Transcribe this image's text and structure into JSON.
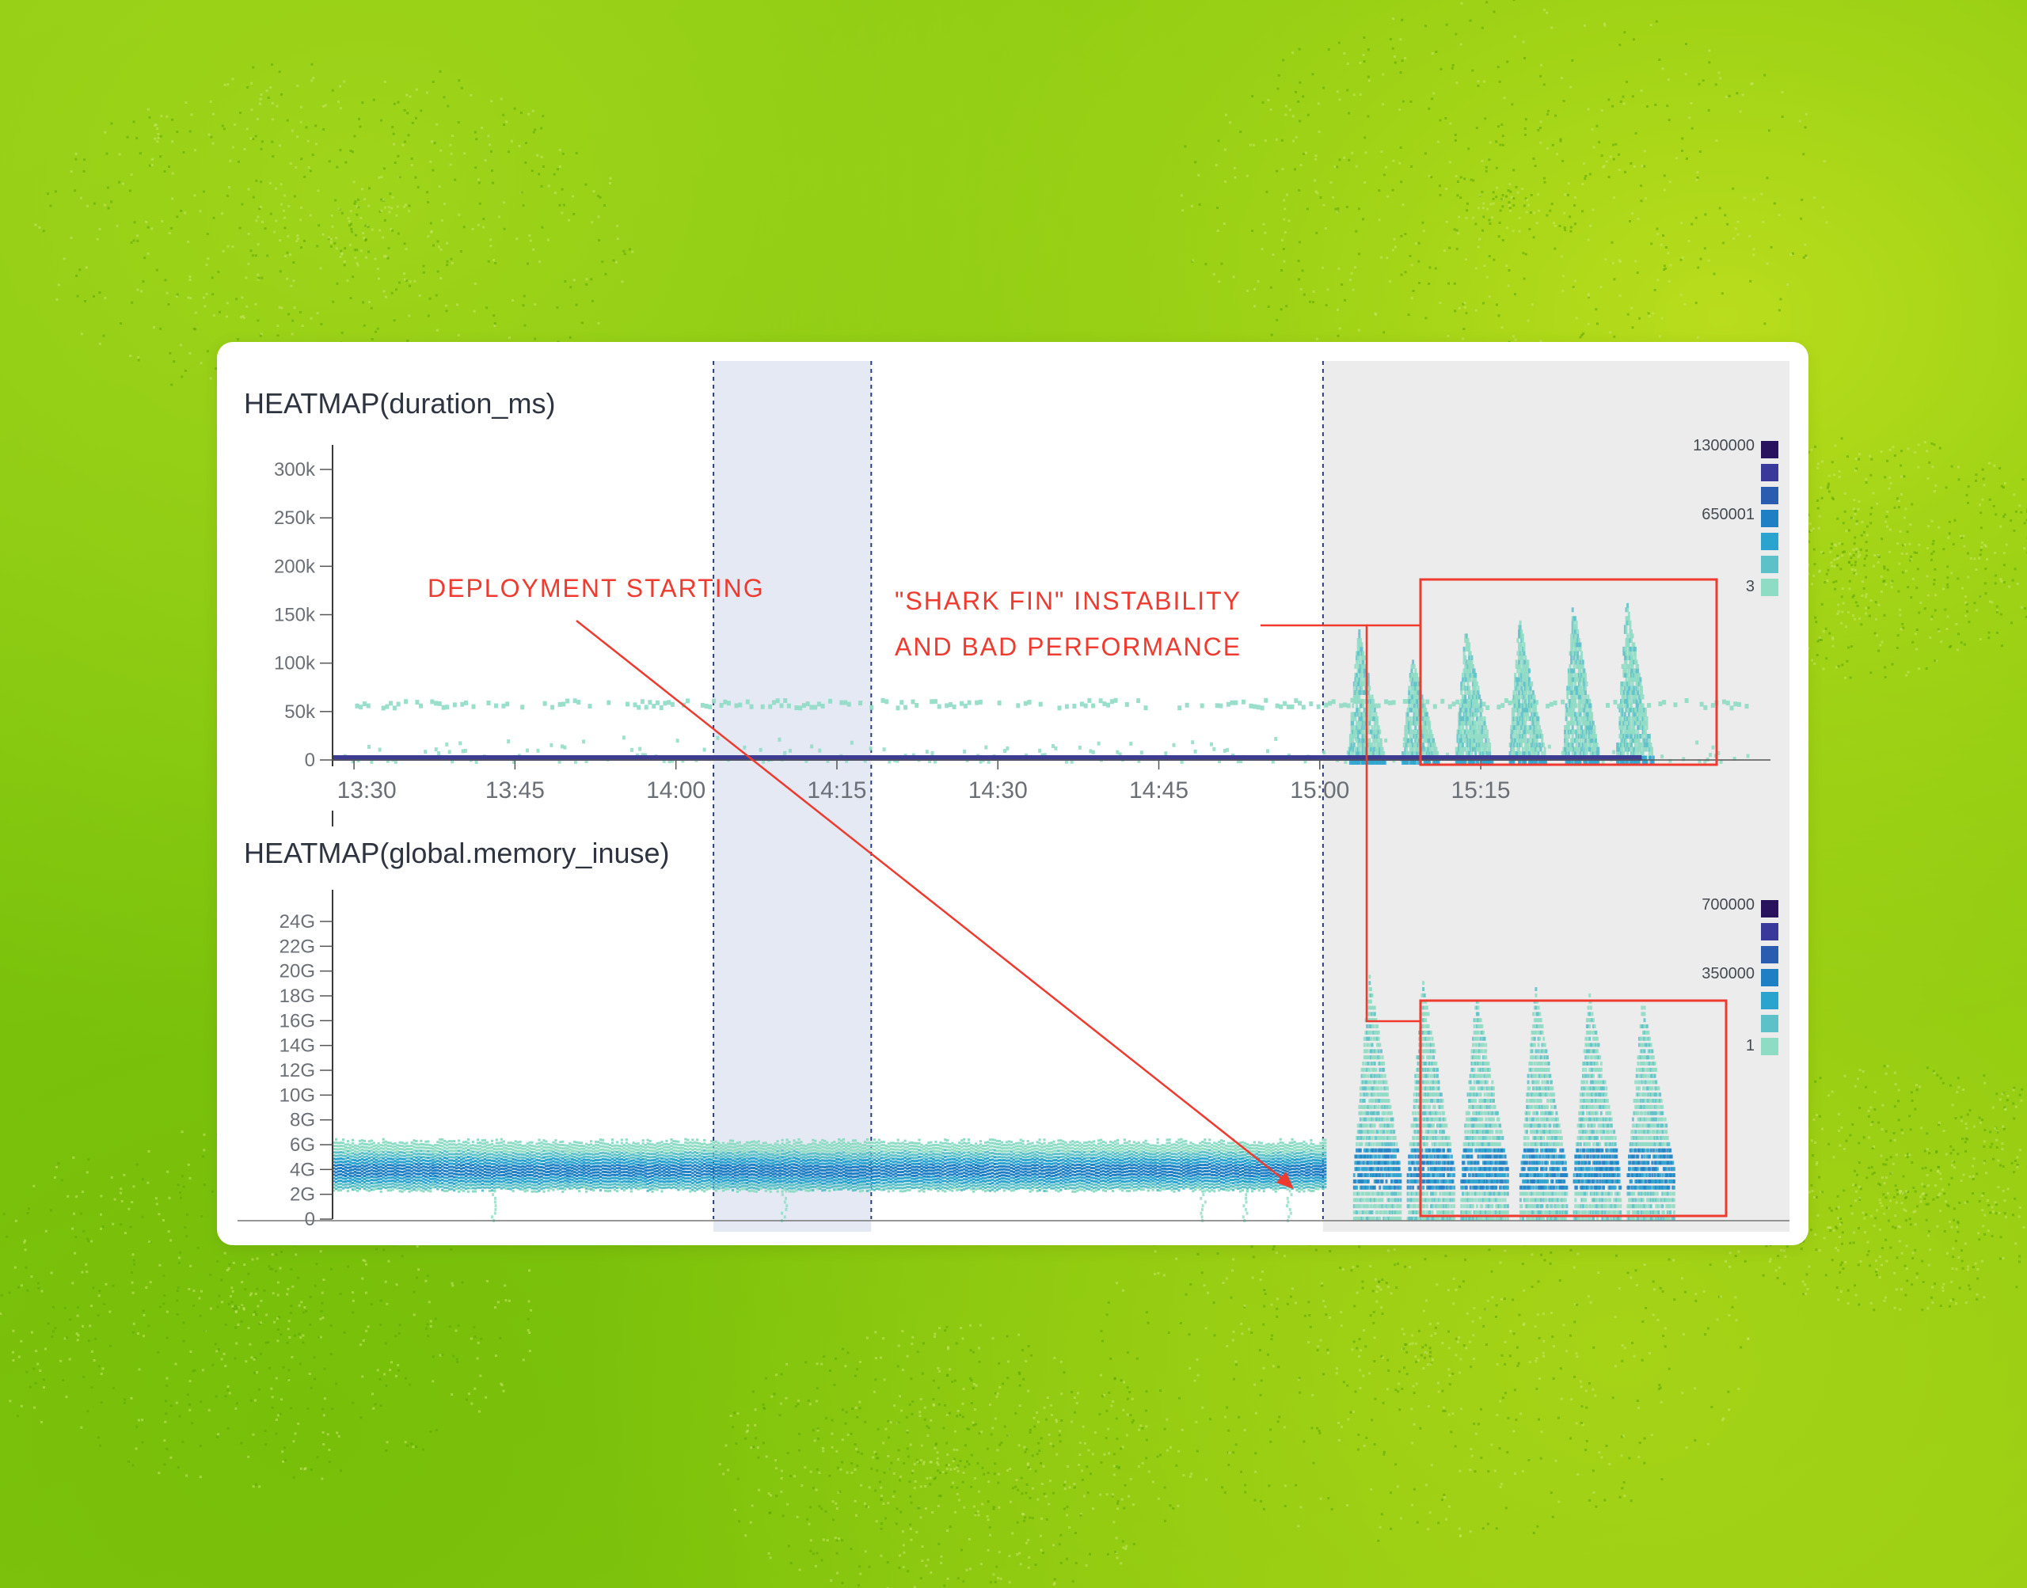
{
  "colors": {
    "highlight_band": "#e4e9f3",
    "gray_band": "#ececec",
    "annotation": "#ef3a2f",
    "heat_scale": [
      "#8fdcc4",
      "#5cc1c9",
      "#2ba3cf",
      "#1f7fc4",
      "#2a5cb0",
      "#38399a",
      "#2a135e"
    ]
  },
  "chart_data": [
    {
      "type": "heatmap",
      "title": "HEATMAP(duration_ms)",
      "x_tick_labels": [
        "13:30",
        "13:45",
        "14:00",
        "14:15",
        "14:30",
        "14:45",
        "15:00",
        "15:15"
      ],
      "x_ticks_minutes": [
        810,
        825,
        840,
        855,
        870,
        885,
        900,
        915
      ],
      "xlim_minutes": [
        808,
        942
      ],
      "y_tick_values": [
        0,
        50000,
        100000,
        150000,
        200000,
        250000,
        300000
      ],
      "y_tick_labels": [
        "0",
        "50k",
        "100k",
        "150k",
        "200k",
        "250k",
        "300k"
      ],
      "ylim": [
        0,
        320000
      ],
      "legend_labels": [
        "1300000",
        "650001",
        "3"
      ],
      "baseline": {
        "value": 0,
        "color_index": 6
      },
      "scatter_band": {
        "value": 60000,
        "start_minute": 808,
        "end_minute": 940
      },
      "shark_fin_peaks_minutes": [
        903.5,
        908.5,
        913.5,
        918.5,
        923.5,
        928.5
      ],
      "shark_fin_peak_values": [
        140000,
        110000,
        140000,
        150000,
        165000,
        170000
      ]
    },
    {
      "type": "heatmap",
      "title": "HEATMAP(global.memory_inuse)",
      "y_tick_values": [
        0,
        2,
        4,
        6,
        8,
        10,
        12,
        14,
        16,
        18,
        20,
        22,
        24
      ],
      "y_tick_labels": [
        "0",
        "2G",
        "4G",
        "6G",
        "8G",
        "10G",
        "12G",
        "14G",
        "16G",
        "18G",
        "20G",
        "22G",
        "24G"
      ],
      "ylim": [
        0,
        25
      ],
      "legend_labels": [
        "700000",
        "350000",
        "1"
      ],
      "steady_band": {
        "low": 2.5,
        "high": 6.5,
        "center": 4
      },
      "shark_fin_peaks_minutes": [
        904.5,
        909.5,
        914.5,
        920.0,
        925.0,
        930.0
      ],
      "shark_fin_peak_values": [
        20,
        19.5,
        18.5,
        19,
        18.5,
        18
      ]
    }
  ],
  "regions": {
    "deployment_band_minutes": [
      843.5,
      858.2
    ],
    "post_deploy_start_minute": 900.3
  },
  "annotations": {
    "deployment": "DEPLOYMENT STARTING",
    "shark_line1": "\"SHARK FIN\" INSTABILITY",
    "shark_line2": "AND BAD PERFORMANCE"
  }
}
